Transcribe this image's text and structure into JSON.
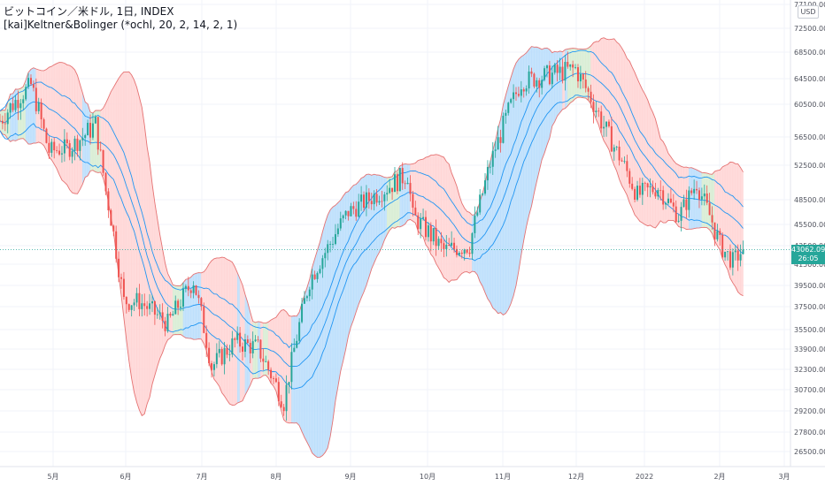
{
  "header": {
    "title": "ビットコイン／米ドル, 1日, INDEX",
    "indicator": "[kai]Keltner&Bolinger (*ochl, 20, 2, 14, 2, 1)"
  },
  "price_axis": {
    "currency": "USD",
    "last_price": "43062.09",
    "countdown": "26:05"
  },
  "colors": {
    "bull": "#26a69a",
    "bear": "#ef5350",
    "bollinger_fill": "#bbdefb",
    "keltner_fill": "#ffd5d5",
    "squeeze_fill": "#d7ecd2",
    "bollinger_line": "#2196f3",
    "keltner_line": "#e57373"
  },
  "chart_data": {
    "type": "candlestick",
    "y_ticks": [
      "26500.00",
      "27800.00",
      "29200.00",
      "30700.00",
      "32300.00",
      "33900.00",
      "35500.00",
      "37500.00",
      "39500.00",
      "41500.00",
      "43500.00",
      "45500.00",
      "48500.00",
      "52500.00",
      "56500.00",
      "60500.00",
      "64500.00",
      "68500.00",
      "72500.00",
      "77100.00"
    ],
    "x_ticks": [
      "5月",
      "6月",
      "7月",
      "8月",
      "9月",
      "10月",
      "11月",
      "12月",
      "2022",
      "2月",
      "3月"
    ],
    "last_close": 43062.09,
    "price_path": [
      [
        "2021-04-01",
        58500
      ],
      [
        "2021-04-13",
        63500
      ],
      [
        "2021-04-20",
        54500
      ],
      [
        "2021-04-28",
        55000
      ],
      [
        "2021-05-08",
        58000
      ],
      [
        "2021-05-12",
        49500
      ],
      [
        "2021-05-19",
        38000
      ],
      [
        "2021-05-25",
        38000
      ],
      [
        "2021-06-05",
        36000
      ],
      [
        "2021-06-15",
        40000
      ],
      [
        "2021-06-22",
        32500
      ],
      [
        "2021-07-01",
        34500
      ],
      [
        "2021-07-10",
        34000
      ],
      [
        "2021-07-20",
        29800
      ],
      [
        "2021-07-30",
        40000
      ],
      [
        "2021-08-14",
        47000
      ],
      [
        "2021-09-06",
        51500
      ],
      [
        "2021-09-08",
        46500
      ],
      [
        "2021-09-20",
        43000
      ],
      [
        "2021-09-30",
        43500
      ],
      [
        "2021-10-10",
        55000
      ],
      [
        "2021-10-20",
        64000
      ],
      [
        "2021-11-10",
        66000
      ],
      [
        "2021-11-20",
        58500
      ],
      [
        "2021-12-04",
        49000
      ],
      [
        "2021-12-12",
        50000
      ],
      [
        "2021-12-20",
        46500
      ],
      [
        "2021-12-27",
        50500
      ],
      [
        "2022-01-05",
        43500
      ],
      [
        "2022-01-10",
        41800
      ],
      [
        "2022-01-14",
        43062
      ]
    ],
    "series": [
      {
        "name": "Bollinger Band upper"
      },
      {
        "name": "Bollinger Band middle"
      },
      {
        "name": "Bollinger Band lower"
      },
      {
        "name": "Keltner Channel upper"
      },
      {
        "name": "Keltner Channel lower"
      }
    ]
  }
}
